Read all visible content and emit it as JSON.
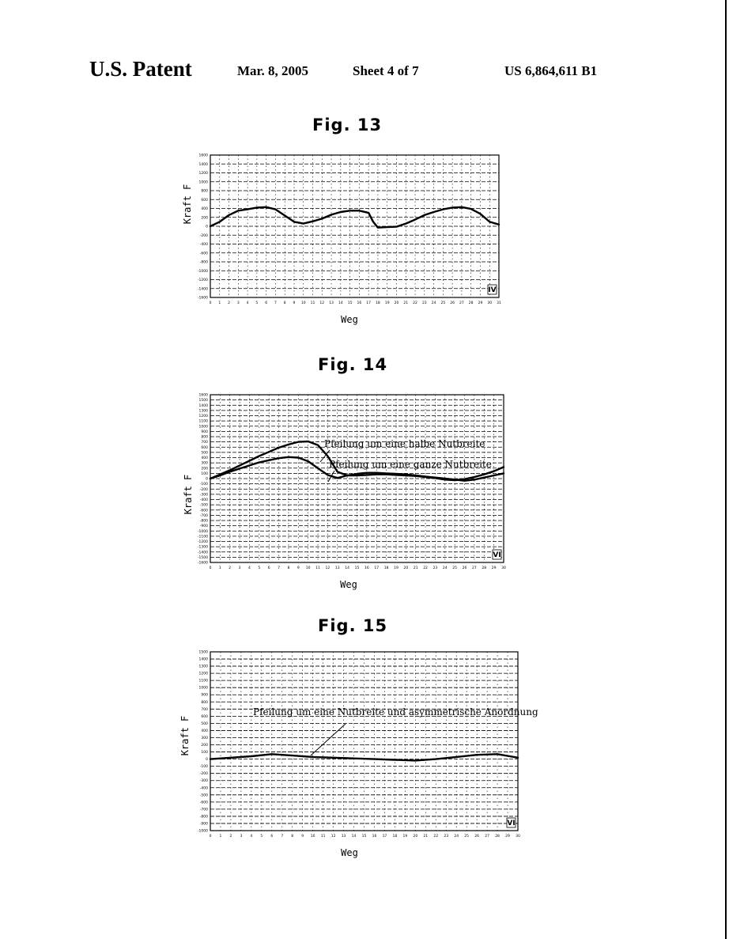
{
  "header": {
    "label": "U.S. Patent",
    "date": "Mar. 8, 2005",
    "sheet": "Sheet 4 of 7",
    "number": "US 6,864,611 B1"
  },
  "chart_data": [
    {
      "type": "line",
      "title": "Fig. 13",
      "xlabel": "Weg",
      "ylabel": "Kraft F",
      "corner_mark": "IV",
      "xlim": [
        0,
        31
      ],
      "ylim": [
        -1600,
        1600
      ],
      "x_ticks": [
        "0",
        "1",
        "2",
        "3",
        "4",
        "5",
        "6",
        "7",
        "8",
        "9",
        "10",
        "11",
        "12",
        "13",
        "14",
        "15",
        "16",
        "17",
        "18",
        "19",
        "20",
        "21",
        "22",
        "23",
        "24",
        "25",
        "26",
        "27",
        "28",
        "29",
        "30",
        "31"
      ],
      "y_ticks": [
        "1600",
        "1400",
        "1200",
        "1000",
        "800",
        "600",
        "400",
        "200",
        "0",
        "-200",
        "-400",
        "-600",
        "-800",
        "-1000",
        "-1200",
        "-1400",
        "-1600"
      ],
      "grid": true,
      "series": [
        {
          "name": "",
          "color": "#000000",
          "x": [
            0,
            1,
            2,
            3,
            4,
            5,
            6,
            7,
            8,
            9,
            10,
            11,
            12,
            13,
            14,
            15,
            16,
            17,
            17.5,
            18,
            19,
            20,
            21,
            22,
            23,
            24,
            25,
            26,
            27,
            28,
            29,
            30,
            31
          ],
          "y": [
            0,
            100,
            250,
            350,
            380,
            420,
            430,
            380,
            240,
            100,
            60,
            110,
            170,
            260,
            320,
            350,
            350,
            300,
            100,
            -30,
            -20,
            -10,
            60,
            150,
            250,
            320,
            380,
            420,
            430,
            390,
            280,
            100,
            40
          ]
        }
      ]
    },
    {
      "type": "line",
      "title": "Fig. 14",
      "xlabel": "Weg",
      "ylabel": "Kraft F",
      "corner_mark": "VI",
      "xlim": [
        0,
        30
      ],
      "ylim": [
        -1600,
        1600
      ],
      "x_ticks": [
        "0",
        "1",
        "2",
        "3",
        "4",
        "5",
        "6",
        "7",
        "8",
        "9",
        "10",
        "11",
        "12",
        "13",
        "14",
        "15",
        "16",
        "17",
        "18",
        "19",
        "20",
        "21",
        "22",
        "23",
        "24",
        "25",
        "26",
        "27",
        "28",
        "29",
        "30"
      ],
      "y_ticks": [
        "1600",
        "1500",
        "1400",
        "1300",
        "1200",
        "1100",
        "1000",
        "900",
        "800",
        "700",
        "600",
        "500",
        "400",
        "300",
        "200",
        "100",
        "0",
        "-100",
        "-200",
        "-300",
        "-400",
        "-500",
        "-600",
        "-700",
        "-800",
        "-900",
        "-1000",
        "-1100",
        "-1200",
        "-1300",
        "-1400",
        "-1500",
        "-1600"
      ],
      "grid": true,
      "annotations": [
        "Pfeilung um eine halbe Nutbreite",
        "Pfeilung um eine ganze Nutbreite"
      ],
      "series": [
        {
          "name": "Pfeilung um eine halbe Nutbreite",
          "color": "#000000",
          "x": [
            0,
            1,
            2,
            3,
            4,
            5,
            6,
            7,
            8,
            9,
            10,
            11,
            12,
            13,
            14,
            15,
            16,
            17,
            18,
            19,
            20,
            21,
            22,
            23,
            24,
            25,
            26,
            27,
            28,
            29,
            30
          ],
          "y": [
            0,
            80,
            160,
            250,
            340,
            430,
            510,
            590,
            650,
            700,
            710,
            640,
            430,
            130,
            60,
            60,
            70,
            80,
            80,
            70,
            60,
            50,
            30,
            10,
            -20,
            -30,
            -10,
            30,
            80,
            140,
            220
          ]
        },
        {
          "name": "Pfeilung um eine ganze Nutbreite",
          "color": "#000000",
          "x": [
            0,
            1,
            2,
            3,
            4,
            5,
            6,
            7,
            8,
            9,
            10,
            11,
            12,
            13,
            14,
            15,
            16,
            17,
            18,
            19,
            20,
            21,
            22,
            23,
            24,
            25,
            26,
            27,
            28,
            29,
            30
          ],
          "y": [
            0,
            60,
            130,
            190,
            250,
            310,
            350,
            390,
            410,
            400,
            330,
            200,
            70,
            10,
            60,
            90,
            110,
            110,
            100,
            90,
            80,
            60,
            40,
            20,
            0,
            -20,
            -40,
            -20,
            20,
            60,
            100
          ]
        }
      ]
    },
    {
      "type": "line",
      "title": "Fig. 15",
      "xlabel": "Weg",
      "ylabel": "Kraft F",
      "corner_mark": "VI",
      "xlim": [
        0,
        30
      ],
      "ylim": [
        -1000,
        1500
      ],
      "x_ticks": [
        "0",
        "1",
        "2",
        "3",
        "4",
        "5",
        "6",
        "7",
        "8",
        "9",
        "10",
        "11",
        "12",
        "13",
        "14",
        "15",
        "16",
        "17",
        "18",
        "19",
        "20",
        "21",
        "22",
        "23",
        "24",
        "25",
        "26",
        "27",
        "28",
        "29",
        "30"
      ],
      "y_ticks": [
        "1500",
        "1400",
        "1300",
        "1200",
        "1100",
        "1000",
        "900",
        "800",
        "700",
        "600",
        "500",
        "400",
        "300",
        "200",
        "100",
        "0",
        "-100",
        "-200",
        "-300",
        "-400",
        "-500",
        "-600",
        "-700",
        "-800",
        "-900",
        "-1000"
      ],
      "grid": true,
      "annotations": [
        "Pfeilung um eine Nutbreite und asymmetrische Anordnung"
      ],
      "series": [
        {
          "name": "Pfeilung um eine Nutbreite und asymmetrische Anordnung",
          "color": "#000000",
          "x": [
            0,
            2,
            4,
            6,
            8,
            10,
            12,
            14,
            16,
            18,
            20,
            22,
            24,
            26,
            28,
            30
          ],
          "y": [
            0,
            20,
            40,
            70,
            50,
            30,
            20,
            10,
            0,
            -10,
            -20,
            0,
            30,
            60,
            70,
            20
          ]
        }
      ]
    }
  ]
}
